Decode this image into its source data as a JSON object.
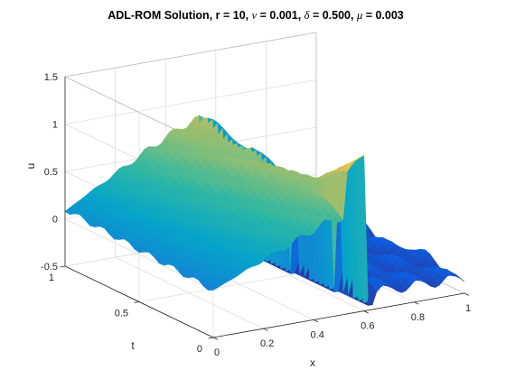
{
  "chart_data": {
    "type": "surface",
    "title": {
      "prefix": "ADL-ROM Solution, r = 10, ",
      "nu_symbol": "ν",
      "nu_value": " = 0.001, ",
      "delta_symbol": "δ",
      "delta_value": " = 0.500, ",
      "mu_symbol": "μ",
      "mu_value": " = 0.003"
    },
    "xlabel": "x",
    "ylabel": "t",
    "zlabel": "u",
    "xlim": [
      0,
      1
    ],
    "ylim": [
      0,
      1
    ],
    "zlim": [
      -0.5,
      1.5
    ],
    "x_ticks": [
      "0",
      "0.2",
      "0.4",
      "0.6",
      "0.8",
      "1"
    ],
    "y_ticks": [
      "0",
      "0.5",
      "1"
    ],
    "z_ticks": [
      "-0.5",
      "0",
      "0.5",
      "1",
      "1.5"
    ],
    "grid": true,
    "colormap": "parula",
    "colormap_stops": [
      "#352a87",
      "#0f5cdd",
      "#1481d6",
      "#06a4ca",
      "#2eb7a4",
      "#87bf77",
      "#d1bb59",
      "#fec832",
      "#f9fb0e"
    ],
    "description_values": {
      "surface_samples_x": [
        0,
        0.1,
        0.2,
        0.3,
        0.4,
        0.5,
        0.55,
        0.6,
        0.7,
        0.8,
        0.9,
        1.0
      ],
      "u_at_t1": [
        0.0,
        0.1,
        0.25,
        0.4,
        0.55,
        0.7,
        0.8,
        -0.2,
        -0.4,
        -0.35,
        -0.3,
        -0.25
      ],
      "u_at_t0": [
        0.0,
        0.05,
        0.1,
        0.15,
        0.2,
        0.25,
        0.3,
        1.0,
        1.2,
        0.0,
        -0.2,
        -0.25
      ]
    }
  }
}
